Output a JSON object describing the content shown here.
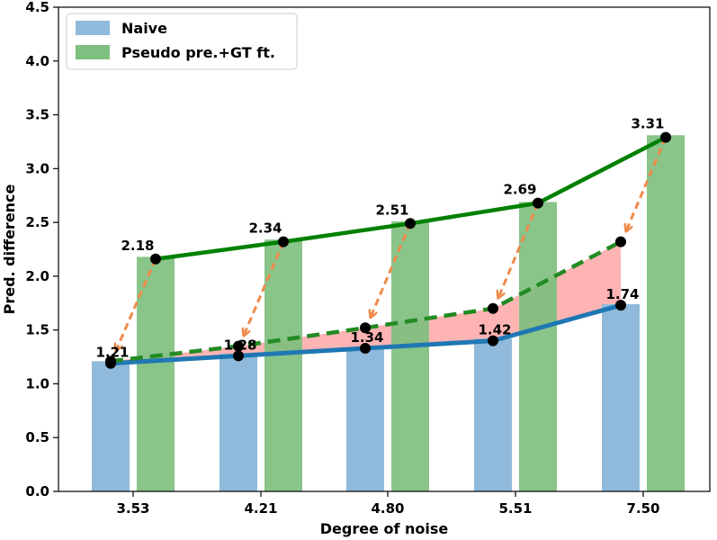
{
  "chart_data": {
    "type": "bar",
    "title": "",
    "xlabel": "Degree of noise",
    "ylabel": "Pred. difference",
    "categories": [
      "3.53",
      "4.21",
      "4.80",
      "5.51",
      "7.50"
    ],
    "ylim": [
      0,
      4.5
    ],
    "yticks": [
      "0.0",
      "0.5",
      "1.0",
      "1.5",
      "2.0",
      "2.5",
      "3.0",
      "3.5",
      "4.0",
      "4.5"
    ],
    "series": [
      {
        "name": "Naive",
        "values": [
          1.21,
          1.28,
          1.34,
          1.42,
          1.74
        ],
        "color": "#8fbadb"
      },
      {
        "name": "Pseudo pre.+GT ft.",
        "values": [
          2.18,
          2.34,
          2.51,
          2.69,
          3.31
        ],
        "color": "#7fbf7f"
      }
    ],
    "lines": {
      "naive_line": {
        "values": [
          1.19,
          1.26,
          1.33,
          1.4,
          1.73
        ],
        "color": "#1f77b4"
      },
      "pseudo_line": {
        "values": [
          2.16,
          2.32,
          2.49,
          2.68,
          3.29
        ],
        "color": "#008000"
      },
      "shifted_line": {
        "values": [
          1.21,
          1.35,
          1.52,
          1.7,
          2.32
        ],
        "color": "#228b22"
      },
      "arrow_color": "#f08a4b",
      "shaded_color": "#ffb0b0"
    },
    "data_labels": [
      "1.21",
      "1.28",
      "1.34",
      "1.42",
      "1.74",
      "2.18",
      "2.34",
      "2.51",
      "2.69",
      "3.31"
    ],
    "legend": {
      "placement": "top-left"
    }
  }
}
